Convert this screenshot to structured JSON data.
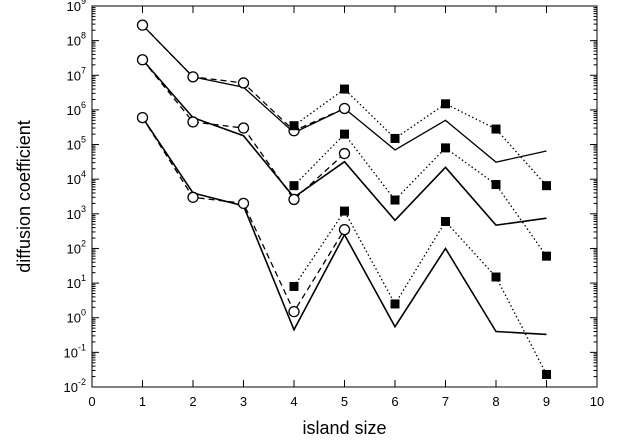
{
  "chart_data": {
    "type": "line",
    "title": "",
    "xlabel": "island size",
    "ylabel": "diffusion coefficient",
    "xlim": [
      0,
      10
    ],
    "ylim": [
      0.01,
      1000000000
    ],
    "yscale": "log",
    "xticks": [
      "0",
      "1",
      "2",
      "3",
      "4",
      "5",
      "6",
      "7",
      "8",
      "9",
      "10"
    ],
    "yticks": [
      {
        "base": "10",
        "exp": "-2",
        "value": 0.01
      },
      {
        "base": "10",
        "exp": "-1",
        "value": 0.1
      },
      {
        "base": "10",
        "exp": "0",
        "value": 1
      },
      {
        "base": "10",
        "exp": "1",
        "value": 10
      },
      {
        "base": "10",
        "exp": "2",
        "value": 100
      },
      {
        "base": "10",
        "exp": "3",
        "value": 1000
      },
      {
        "base": "10",
        "exp": "4",
        "value": 10000
      },
      {
        "base": "10",
        "exp": "5",
        "value": 100000
      },
      {
        "base": "10",
        "exp": "6",
        "value": 1000000
      },
      {
        "base": "10",
        "exp": "7",
        "value": 10000000
      },
      {
        "base": "10",
        "exp": "8",
        "value": 100000000
      },
      {
        "base": "10",
        "exp": "9",
        "value": 1000000000
      }
    ],
    "grid": false,
    "legend": false,
    "groups": [
      {
        "solid_line": {
          "x": [
            1,
            2,
            3,
            4,
            5,
            6,
            7,
            8,
            9
          ],
          "y": [
            280000000,
            9000000,
            4500000,
            220000,
            1100000,
            70000,
            500000,
            31000,
            65000
          ]
        },
        "dashed_circles": {
          "x": [
            1,
            2,
            3,
            4,
            5
          ],
          "y": [
            280000000,
            9000000,
            6000000,
            250000,
            1100000
          ]
        },
        "dotted_squares": {
          "x": [
            4,
            5,
            6,
            7,
            8,
            9
          ],
          "y": [
            350000,
            4000000,
            150000,
            1500000,
            280000,
            6500
          ]
        }
      },
      {
        "solid_line": {
          "x": [
            1,
            2,
            3,
            4,
            5,
            6,
            7,
            8,
            9
          ],
          "y": [
            28000000,
            600000,
            180000,
            3000,
            32000,
            650,
            22000,
            470,
            750
          ]
        },
        "dashed_circles": {
          "x": [
            1,
            2,
            3,
            4,
            5
          ],
          "y": [
            28000000,
            450000,
            300000,
            2600,
            55000
          ]
        },
        "dotted_squares": {
          "x": [
            4,
            5,
            6,
            7,
            8,
            9
          ],
          "y": [
            6500,
            200000,
            2500,
            80000,
            7000,
            60
          ]
        }
      },
      {
        "solid_line": {
          "x": [
            1,
            2,
            3,
            4,
            5,
            6,
            7,
            8,
            9
          ],
          "y": [
            600000,
            4000,
            1700,
            0.45,
            250,
            0.55,
            100,
            0.4,
            0.33
          ]
        },
        "dashed_circles": {
          "x": [
            1,
            2,
            3,
            4,
            5
          ],
          "y": [
            600000,
            3000,
            2000,
            1.5,
            350
          ]
        },
        "dotted_squares": {
          "x": [
            4,
            5,
            6,
            7,
            8,
            9
          ],
          "y": [
            8,
            1200,
            2.5,
            600,
            15,
            0.023
          ]
        }
      }
    ]
  }
}
